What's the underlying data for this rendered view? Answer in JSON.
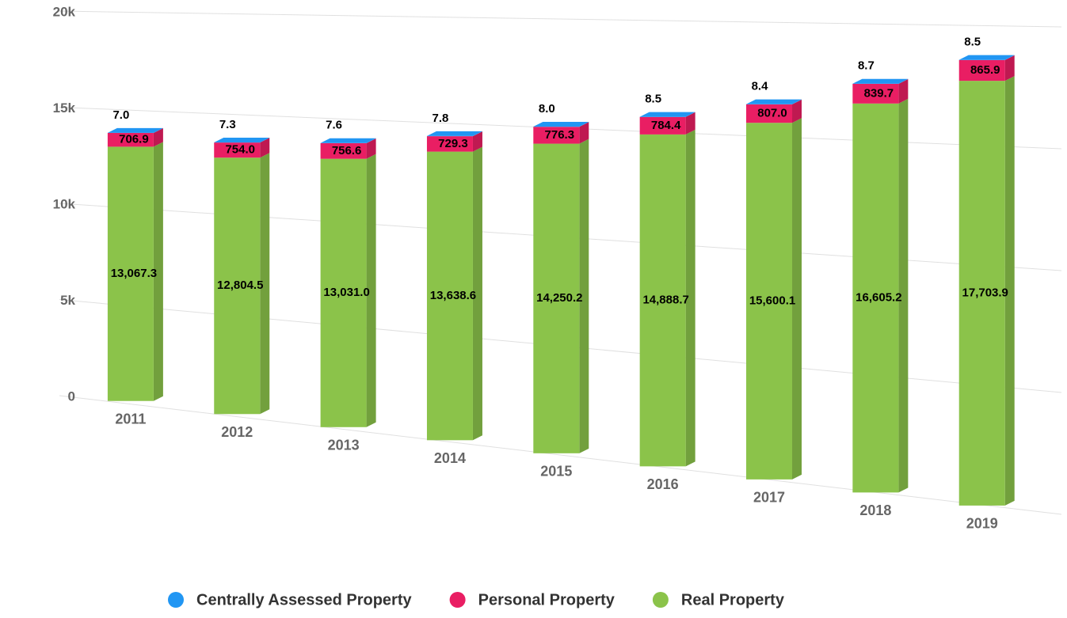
{
  "chart_data": {
    "type": "bar3d_stacked",
    "categories": [
      "2011",
      "2012",
      "2013",
      "2014",
      "2015",
      "2016",
      "2017",
      "2018",
      "2019"
    ],
    "series": [
      {
        "name": "Centrally Assessed Property",
        "color": "#2196f3",
        "values": [
          7.0,
          7.3,
          7.6,
          7.8,
          8.0,
          8.5,
          8.4,
          8.7,
          8.5
        ],
        "value_labels": [
          "7.0",
          "7.3",
          "7.6",
          "7.8",
          "8.0",
          "8.5",
          "8.4",
          "8.7",
          "8.5"
        ]
      },
      {
        "name": "Personal Property",
        "color": "#e91e63",
        "values": [
          706.9,
          754.0,
          756.6,
          729.3,
          776.3,
          784.4,
          807.0,
          839.7,
          865.9
        ],
        "value_labels": [
          "706.9",
          "754.0",
          "756.6",
          "729.3",
          "776.3",
          "784.4",
          "807.0",
          "839.7",
          "865.9"
        ]
      },
      {
        "name": "Real Property",
        "color": "#8bc34a",
        "values": [
          13067.3,
          12804.5,
          13031.0,
          13638.6,
          14250.2,
          14888.7,
          15600.1,
          16605.2,
          17703.9
        ],
        "value_labels": [
          "13,067.3",
          "12,804.5",
          "13,031.0",
          "13,638.6",
          "14,250.2",
          "14,888.7",
          "15,600.1",
          "16,605.2",
          "17,703.9"
        ]
      }
    ],
    "ylim": [
      0,
      20000
    ],
    "yticks": [
      0,
      {
        "value": 5000,
        "label": "5k"
      },
      {
        "value": 10000,
        "label": "10k"
      },
      {
        "value": 15000,
        "label": "15k"
      },
      {
        "value": 20000,
        "label": "20k"
      }
    ],
    "grid": true,
    "legend": "bottom"
  }
}
